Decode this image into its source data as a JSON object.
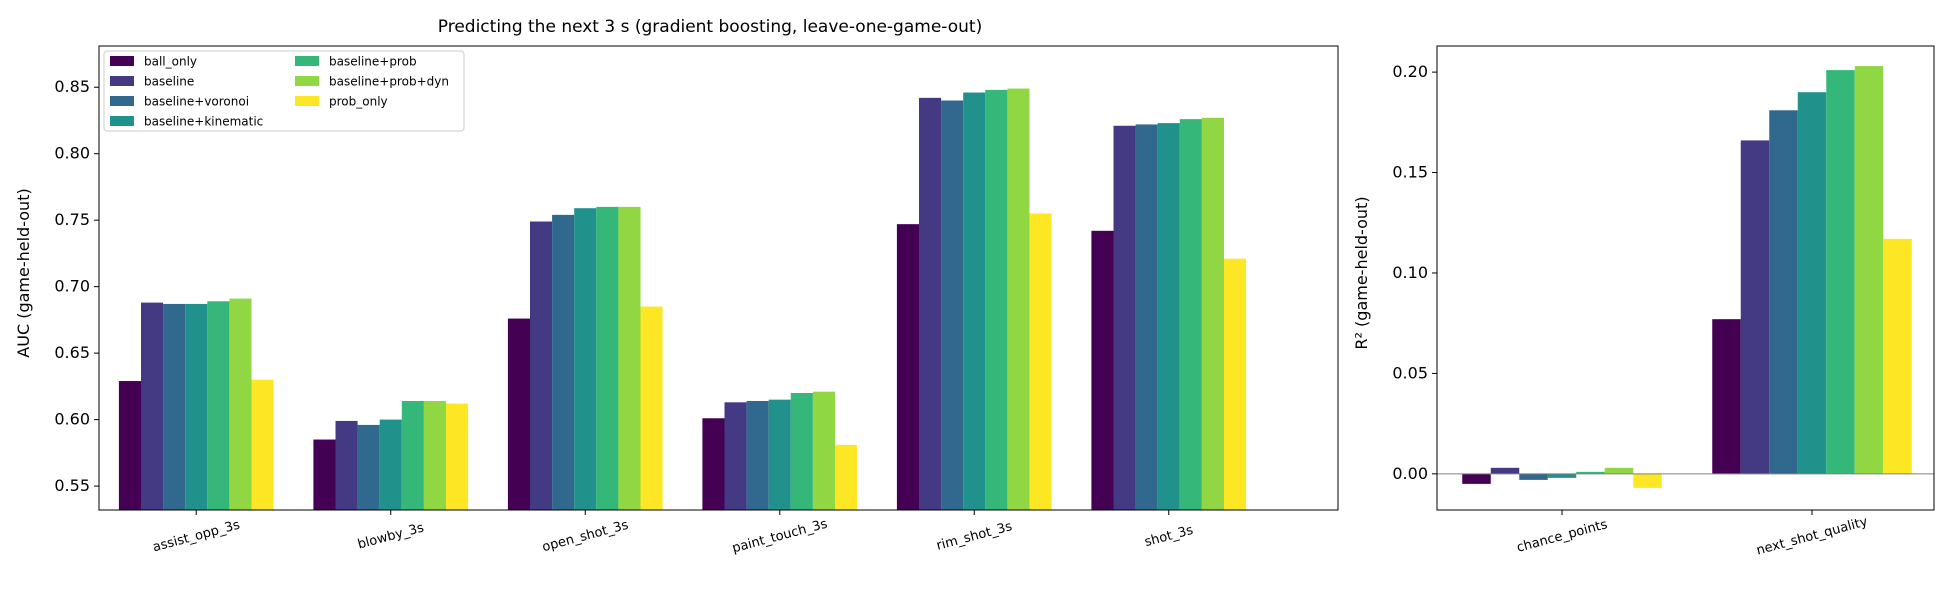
{
  "figure_title": "Predicting the next 3 s (gradient boosting, leave-one-game-out)",
  "colors": {
    "ball_only": "#440154",
    "baseline": "#443983",
    "baseline+voronoi": "#31688e",
    "baseline+kinematic": "#21918c",
    "baseline+prob": "#35b779",
    "baseline+prob+dyn": "#90d743",
    "prob_only": "#fde725"
  },
  "chart_data": [
    {
      "type": "bar",
      "title": "Predicting the next 3 s (gradient boosting, leave-one-game-out)",
      "xlabel": "",
      "ylabel": "AUC (game-held-out)",
      "ylim": [
        0.532,
        0.881
      ],
      "yticks": [
        "0.55",
        "0.60",
        "0.65",
        "0.70",
        "0.75",
        "0.80",
        "0.85"
      ],
      "grid": false,
      "legend_position": "top-left",
      "categories": [
        "assist_opp_3s",
        "blowby_3s",
        "open_shot_3s",
        "paint_touch_3s",
        "rim_shot_3s",
        "shot_3s"
      ],
      "series": [
        {
          "name": "ball_only",
          "values": [
            0.629,
            0.585,
            0.676,
            0.601,
            0.747,
            0.742
          ]
        },
        {
          "name": "baseline",
          "values": [
            0.688,
            0.599,
            0.749,
            0.613,
            0.842,
            0.821
          ]
        },
        {
          "name": "baseline+voronoi",
          "values": [
            0.687,
            0.596,
            0.754,
            0.614,
            0.84,
            0.822
          ]
        },
        {
          "name": "baseline+kinematic",
          "values": [
            0.687,
            0.6,
            0.759,
            0.615,
            0.846,
            0.823
          ]
        },
        {
          "name": "baseline+prob",
          "values": [
            0.689,
            0.614,
            0.76,
            0.62,
            0.848,
            0.826
          ]
        },
        {
          "name": "baseline+prob+dyn",
          "values": [
            0.691,
            0.614,
            0.76,
            0.621,
            0.849,
            0.827
          ]
        },
        {
          "name": "prob_only",
          "values": [
            0.63,
            0.612,
            0.685,
            0.581,
            0.755,
            0.721
          ]
        }
      ]
    },
    {
      "type": "bar",
      "title": "",
      "xlabel": "",
      "ylabel": "R² (game-held-out)",
      "ylim": [
        -0.018,
        0.213
      ],
      "yticks": [
        "0.00",
        "0.05",
        "0.10",
        "0.15",
        "0.20"
      ],
      "grid": false,
      "zero_line": true,
      "categories": [
        "chance_points",
        "next_shot_quality"
      ],
      "series": [
        {
          "name": "ball_only",
          "values": [
            -0.005,
            0.077
          ]
        },
        {
          "name": "baseline",
          "values": [
            0.003,
            0.166
          ]
        },
        {
          "name": "baseline+voronoi",
          "values": [
            -0.003,
            0.181
          ]
        },
        {
          "name": "baseline+kinematic",
          "values": [
            -0.002,
            0.19
          ]
        },
        {
          "name": "baseline+prob",
          "values": [
            0.001,
            0.201
          ]
        },
        {
          "name": "baseline+prob+dyn",
          "values": [
            0.003,
            0.203
          ]
        },
        {
          "name": "prob_only",
          "values": [
            -0.007,
            0.117
          ]
        }
      ]
    }
  ]
}
